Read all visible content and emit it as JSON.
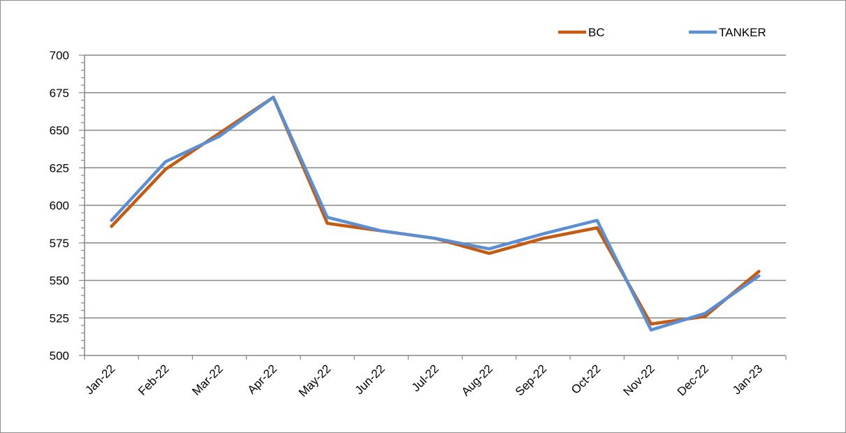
{
  "chart_data": {
    "type": "line",
    "categories": [
      "Jan-22",
      "Feb-22",
      "Mar-22",
      "Apr-22",
      "May-22",
      "Jun-22",
      "Jul-22",
      "Aug-22",
      "Sep-22",
      "Oct-22",
      "Nov-22",
      "Dec-22",
      "Jan-23"
    ],
    "series": [
      {
        "name": "BC",
        "color": "#c55a11",
        "values": [
          586,
          624,
          648,
          672,
          588,
          583,
          578,
          568,
          578,
          585,
          521,
          526,
          556
        ]
      },
      {
        "name": "TANKER",
        "color": "#5b8fd3",
        "values": [
          590,
          629,
          646,
          672,
          592,
          583,
          578,
          571,
          581,
          590,
          517,
          528,
          553
        ]
      }
    ],
    "yticks": [
      "700",
      "675",
      "650",
      "625",
      "600",
      "575",
      "550",
      "525",
      "500"
    ],
    "ylim": [
      500,
      700
    ],
    "title": "",
    "xlabel": "",
    "ylabel": "",
    "grid": true,
    "legend_position": "top-right"
  }
}
